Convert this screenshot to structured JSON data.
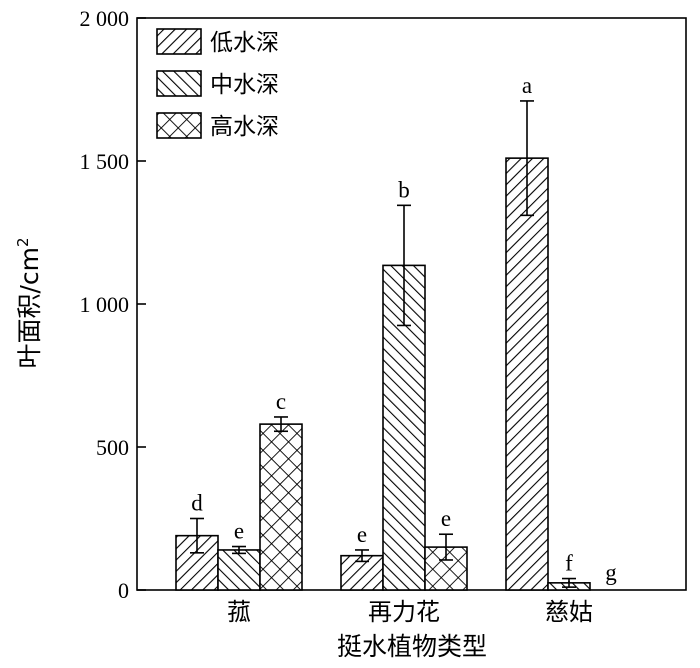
{
  "chart_data": {
    "type": "bar",
    "categories": [
      "菰",
      "再力花",
      "慈姑"
    ],
    "xlabel": "挺水植物类型",
    "ylabel": "叶面积/cm",
    "ylabel_sup": "2",
    "ylim": [
      0,
      2000
    ],
    "yticks": [
      {
        "value": 0,
        "label": "0"
      },
      {
        "value": 500,
        "label": "500"
      },
      {
        "value": 1000,
        "label": "1 000"
      },
      {
        "value": 1500,
        "label": "1 500"
      },
      {
        "value": 2000,
        "label": "2 000"
      }
    ],
    "legend_position": "top-left",
    "series": [
      {
        "name": "低水深",
        "pattern": "diag-forward",
        "values": [
          190,
          120,
          1510
        ],
        "errors": [
          60,
          20,
          200
        ],
        "labels": [
          "d",
          "e",
          "a"
        ]
      },
      {
        "name": "中水深",
        "pattern": "diag-back",
        "values": [
          140,
          1135,
          25
        ],
        "errors": [
          12,
          210,
          15
        ],
        "labels": [
          "e",
          "b",
          "f"
        ]
      },
      {
        "name": "高水深",
        "pattern": "crosshatch",
        "values": [
          580,
          150,
          0
        ],
        "errors": [
          25,
          45,
          0
        ],
        "labels": [
          "c",
          "e",
          "g"
        ]
      }
    ]
  }
}
